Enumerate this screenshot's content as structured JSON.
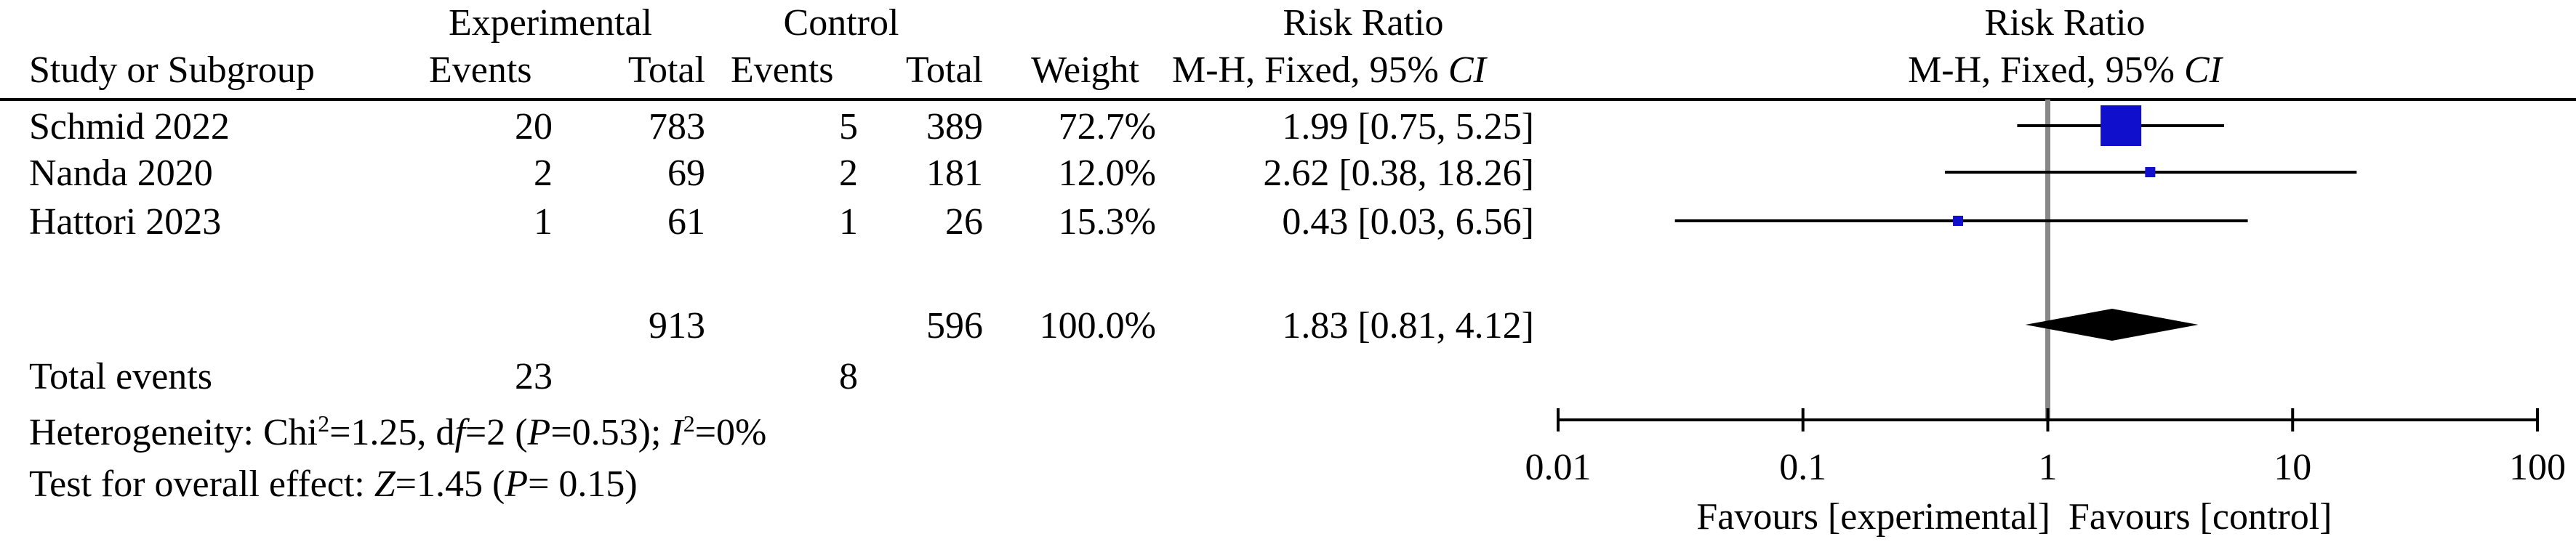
{
  "headers": {
    "group_experimental": "Experimental",
    "group_control": "Control",
    "risk_ratio": "Risk Ratio",
    "study_or_subgroup": "Study or Subgroup",
    "events": "Events",
    "total": "Total",
    "weight": "Weight",
    "method": "M-H, Fixed, 95% ",
    "ci": "CI"
  },
  "studies": [
    {
      "study": "Schmid 2022",
      "exp_events": "20",
      "exp_total": "783",
      "ctrl_events": "5",
      "ctrl_total": "389",
      "weight": "72.7%",
      "rr_text": "1.99 [0.75, 5.25]"
    },
    {
      "study": "Nanda 2020",
      "exp_events": "2",
      "exp_total": "69",
      "ctrl_events": "2",
      "ctrl_total": "181",
      "weight": "12.0%",
      "rr_text": "2.62 [0.38, 18.26]"
    },
    {
      "study": "Hattori 2023",
      "exp_events": "1",
      "exp_total": "61",
      "ctrl_events": "1",
      "ctrl_total": "26",
      "weight": "15.3%",
      "rr_text": "0.43 [0.03, 6.56]"
    }
  ],
  "total_row": {
    "exp_total": "913",
    "ctrl_total": "596",
    "weight": "100.0%",
    "rr_text": "1.83 [0.81, 4.12]"
  },
  "total_events": {
    "label": "Total events",
    "exp": "23",
    "ctrl": "8"
  },
  "heterogeneity": {
    "prefix": "Heterogeneity: Chi",
    "sup2": "2",
    "chi_val": "=1.25, d",
    "f": "f",
    "df_val": "=2 (",
    "p": "P",
    "p_val": "=0.53); ",
    "i": "I",
    "sup2b": "2",
    "i_val": "=0%"
  },
  "overall_effect": {
    "prefix": "Test for overall effect: ",
    "z": "Z",
    "z_val": "=1.45 (",
    "p": "P",
    "p_val": "= 0.15)"
  },
  "chart_data": {
    "type": "forest",
    "xscale": "log",
    "xlim": [
      0.01,
      100
    ],
    "ticks": [
      0.01,
      0.1,
      1,
      10,
      100
    ],
    "tick_labels": [
      "0.01",
      "0.1",
      "1",
      "10",
      "100"
    ],
    "xlabel_left": "Favours [experimental]",
    "xlabel_right": "Favours [control]",
    "studies": [
      {
        "name": "Schmid 2022",
        "rr": 1.99,
        "lo": 0.75,
        "hi": 5.25,
        "weight": 72.7
      },
      {
        "name": "Nanda 2020",
        "rr": 2.62,
        "lo": 0.38,
        "hi": 18.26,
        "weight": 12.0
      },
      {
        "name": "Hattori 2023",
        "rr": 0.43,
        "lo": 0.03,
        "hi": 6.56,
        "weight": 15.3
      }
    ],
    "pooled": {
      "rr": 1.83,
      "lo": 0.81,
      "hi": 4.12
    },
    "colors": {
      "square": "#1010cc",
      "diamond": "#000000",
      "null_line": "#888888"
    }
  }
}
